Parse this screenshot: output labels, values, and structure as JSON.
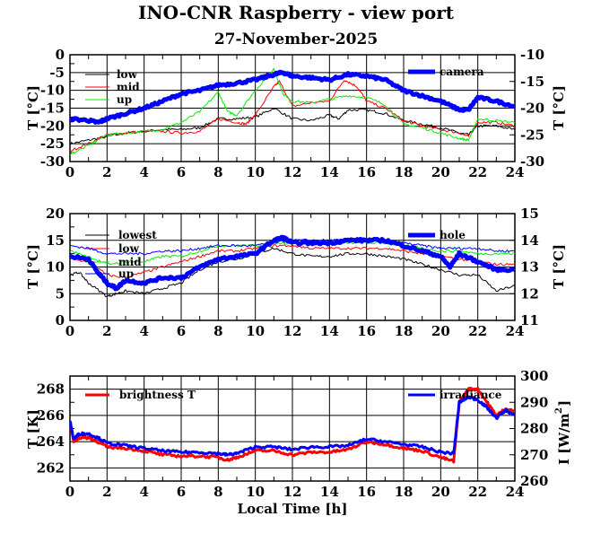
{
  "title": "INO-CNR Raspberry - view port",
  "subtitle": "27-November-2025",
  "xlabel": "Local Time [h]",
  "chart_data": [
    {
      "type": "line",
      "xlim": [
        0,
        24
      ],
      "xticks": [
        "0",
        "2",
        "4",
        "6",
        "8",
        "10",
        "12",
        "14",
        "16",
        "18",
        "20",
        "22",
        "24"
      ],
      "ylabel_left": "T [°C]",
      "ylabel_right": "T [°C]",
      "ylim_left": [
        -30,
        0
      ],
      "ylim_right": [
        -30,
        -10
      ],
      "yticks_left": [
        "0",
        "-5",
        "-10",
        "-15",
        "-20",
        "-25",
        "-30"
      ],
      "yticks_right": [
        "-10",
        "-15",
        "-20",
        "-25",
        "-30"
      ],
      "grid": true,
      "series": [
        {
          "name": "low",
          "axis": "left",
          "color": "#000000",
          "x": [
            0,
            1,
            2,
            3,
            4,
            5,
            6,
            7,
            8,
            9,
            10,
            11,
            12,
            13,
            14,
            14.5,
            15,
            16,
            17,
            18,
            19,
            20,
            21,
            21.5,
            22,
            23,
            24
          ],
          "y": [
            -25,
            -24,
            -23,
            -22,
            -21.5,
            -21,
            -21,
            -20.5,
            -18,
            -18,
            -17.5,
            -15,
            -18,
            -18.5,
            -17,
            -18,
            -15.5,
            -15.5,
            -16.5,
            -18.5,
            -19.5,
            -20.5,
            -22,
            -22.5,
            -20,
            -20,
            -21
          ]
        },
        {
          "name": "mid",
          "axis": "left",
          "color": "#ff0000",
          "x": [
            0,
            1,
            2,
            3,
            4,
            5,
            6,
            7,
            8,
            9,
            9.5,
            10,
            11,
            11.3,
            12,
            13,
            14,
            14.8,
            15.5,
            16,
            17,
            18,
            19,
            20,
            21,
            21.5,
            22,
            23,
            24
          ],
          "y": [
            -27,
            -25,
            -22.5,
            -22,
            -21.5,
            -21.5,
            -22,
            -21.5,
            -18,
            -19,
            -19.5,
            -17,
            -9,
            -7.5,
            -14.5,
            -13.5,
            -13,
            -7,
            -9,
            -13,
            -15,
            -18.5,
            -20,
            -21,
            -22,
            -23,
            -19,
            -19,
            -20
          ]
        },
        {
          "name": "up",
          "axis": "left",
          "color": "#00ee00",
          "x": [
            0,
            1,
            2,
            3,
            4,
            5,
            6,
            7,
            8,
            8.5,
            9,
            10,
            11,
            11.5,
            12,
            13,
            14,
            15,
            16,
            17,
            18,
            19,
            20,
            21,
            21.5,
            22,
            23,
            24
          ],
          "y": [
            -28,
            -25.5,
            -22.5,
            -22,
            -21.5,
            -21,
            -19,
            -16,
            -10.5,
            -16,
            -17,
            -10,
            -4,
            -11,
            -13,
            -13.5,
            -12.5,
            -11.5,
            -12,
            -14,
            -19.5,
            -20.5,
            -22,
            -23.5,
            -24,
            -18,
            -18.5,
            -19
          ]
        },
        {
          "name": "camera",
          "axis": "right",
          "color": "#0000ff",
          "x": [
            0,
            1,
            1.5,
            2,
            3,
            4,
            5,
            6,
            7,
            8,
            9,
            10,
            11,
            11.5,
            12,
            13,
            14,
            15,
            16,
            17,
            18,
            19,
            20,
            21,
            21.5,
            22,
            23,
            24
          ],
          "y": [
            -22,
            -22.3,
            -22.7,
            -22,
            -21,
            -20,
            -18.7,
            -17.3,
            -16.7,
            -15.7,
            -15.3,
            -14.7,
            -13.7,
            -13.3,
            -14,
            -14.3,
            -14.7,
            -13.7,
            -14,
            -14.7,
            -16.7,
            -17.7,
            -18.7,
            -20.3,
            -20.3,
            -18,
            -18.7,
            -19.7
          ]
        }
      ]
    },
    {
      "type": "line",
      "xlim": [
        0,
        24
      ],
      "xticks": [
        "0",
        "2",
        "4",
        "6",
        "8",
        "10",
        "12",
        "14",
        "16",
        "18",
        "20",
        "22",
        "24"
      ],
      "ylabel_left": "T [°C]",
      "ylabel_right": "T [°C]",
      "ylim_left": [
        0,
        20
      ],
      "ylim_right": [
        11,
        15
      ],
      "yticks_left": [
        "20",
        "15",
        "10",
        "5",
        "0"
      ],
      "yticks_right": [
        "15",
        "14",
        "13",
        "12",
        "11"
      ],
      "grid": true,
      "series": [
        {
          "name": "lowest",
          "axis": "left",
          "color": "#000000",
          "x": [
            0,
            0.5,
            1,
            2,
            2.5,
            3,
            4,
            5,
            6,
            7,
            8,
            9,
            10,
            11,
            12,
            13,
            14,
            15,
            16,
            17,
            18,
            19,
            20,
            21,
            22,
            23,
            24
          ],
          "y": [
            8.5,
            9,
            7,
            4.5,
            5,
            5.5,
            5,
            6,
            7,
            9.5,
            11,
            11.5,
            12.5,
            13.5,
            12.5,
            12,
            12,
            12.5,
            12.5,
            12,
            11.5,
            10.5,
            9.5,
            8.5,
            8.5,
            5.5,
            6.5
          ]
        },
        {
          "name": "low",
          "axis": "left",
          "color": "#ff0000",
          "x": [
            0,
            1,
            2,
            3,
            4,
            5,
            6,
            7,
            8,
            9,
            10,
            11,
            12,
            13,
            14,
            15,
            16,
            17,
            18,
            19,
            20,
            21,
            22,
            23,
            24
          ],
          "y": [
            11.5,
            11,
            8.5,
            8,
            9,
            10,
            11,
            12,
            13,
            13,
            13.5,
            14,
            14,
            13.5,
            13.5,
            13.5,
            13.5,
            13.5,
            13,
            12.5,
            12,
            11.5,
            11,
            10.5,
            10.5
          ]
        },
        {
          "name": "mid",
          "axis": "left",
          "color": "#00ee00",
          "x": [
            0,
            1,
            2,
            3,
            4,
            5,
            6,
            7,
            8,
            9,
            10,
            11,
            12,
            13,
            14,
            15,
            16,
            17,
            18,
            19,
            20,
            21,
            22,
            23,
            24
          ],
          "y": [
            13,
            12,
            10.5,
            11,
            11,
            12,
            12,
            13,
            14,
            14,
            14,
            14.5,
            14.5,
            14.5,
            14.5,
            14.5,
            14.5,
            14.5,
            14,
            13.5,
            13,
            13,
            12.5,
            12.5,
            12.5
          ]
        },
        {
          "name": "up",
          "axis": "left",
          "color": "#0000ff",
          "x": [
            0,
            1,
            2,
            3,
            4,
            5,
            6,
            7,
            8,
            9,
            10,
            11,
            12,
            13,
            14,
            15,
            16,
            17,
            18,
            19,
            20,
            21,
            22,
            23,
            24
          ],
          "y": [
            14,
            13.5,
            12.5,
            12.5,
            12.5,
            13,
            13,
            13.5,
            14,
            14,
            14,
            14.5,
            15,
            15,
            15,
            15,
            15,
            15,
            14.5,
            14,
            13.5,
            13.5,
            13.5,
            13,
            13
          ]
        },
        {
          "name": "hole",
          "axis": "right",
          "color": "#0000ff",
          "x": [
            0,
            1,
            1.5,
            2,
            2.5,
            3,
            4,
            5,
            6,
            7,
            8,
            9,
            10,
            11,
            11.5,
            12,
            13,
            14,
            15,
            16,
            17,
            18,
            19,
            20,
            20.5,
            21,
            22,
            23,
            24
          ],
          "y": [
            13.4,
            13.3,
            12.8,
            12.4,
            12.2,
            12.5,
            12.4,
            12.6,
            12.6,
            13,
            13.3,
            13.4,
            13.5,
            14,
            14.1,
            13.9,
            13.9,
            13.9,
            14,
            14,
            14,
            13.8,
            13.6,
            13.4,
            13,
            13.5,
            13.2,
            12.9,
            12.9
          ]
        }
      ]
    },
    {
      "type": "line",
      "xlim": [
        0,
        24
      ],
      "xticks": [
        "0",
        "2",
        "4",
        "6",
        "8",
        "10",
        "12",
        "14",
        "16",
        "18",
        "20",
        "22",
        "24"
      ],
      "ylabel_left": "T [K]",
      "ylabel_right": "I [W/m",
      "ylabel_right_sup": "2",
      "ylabel_right_end": "]",
      "ylim_left": [
        261,
        269
      ],
      "ylim_right": [
        260,
        300
      ],
      "yticks_left": [
        "268",
        "266",
        "264",
        "262"
      ],
      "yticks_right": [
        "300",
        "290",
        "280",
        "270",
        "260"
      ],
      "grid": true,
      "series": [
        {
          "name": "brightness T",
          "axis": "left",
          "color": "#ff0000",
          "x": [
            0,
            0.2,
            0.5,
            1,
            1.5,
            2,
            3,
            4,
            5,
            6,
            7,
            8,
            8.5,
            9,
            10,
            11,
            12,
            13,
            14,
            15,
            16,
            17,
            18,
            19,
            20,
            20.7,
            21,
            21.5,
            22,
            22.5,
            23,
            23.5,
            24
          ],
          "y": [
            265.5,
            264,
            264.3,
            264.3,
            264,
            263.6,
            263.5,
            263.3,
            263,
            262.9,
            262.9,
            262.8,
            262.6,
            262.8,
            263.3,
            263.3,
            263,
            263.2,
            263.2,
            263.4,
            264,
            263.8,
            263.5,
            263.3,
            262.8,
            262.5,
            267,
            268,
            268,
            267,
            266,
            266.5,
            266.3
          ]
        },
        {
          "name": "irradiance",
          "axis": "right",
          "color": "#0000ff",
          "x": [
            0,
            0.2,
            0.5,
            1,
            1.5,
            2,
            3,
            4,
            5,
            6,
            7,
            8,
            8.5,
            9,
            10,
            11,
            12,
            13,
            14,
            15,
            16,
            17,
            18,
            19,
            20,
            20.7,
            21,
            21.5,
            22,
            22.5,
            23,
            23.5,
            24
          ],
          "y": [
            283,
            276,
            278,
            278,
            276.5,
            274.5,
            273.5,
            272.5,
            271.5,
            271,
            271,
            270.5,
            270,
            270.5,
            273,
            273,
            272,
            273,
            273,
            273.5,
            276,
            275,
            274,
            273,
            271,
            270.5,
            290,
            292,
            291,
            288,
            284,
            287,
            285
          ]
        }
      ]
    }
  ]
}
